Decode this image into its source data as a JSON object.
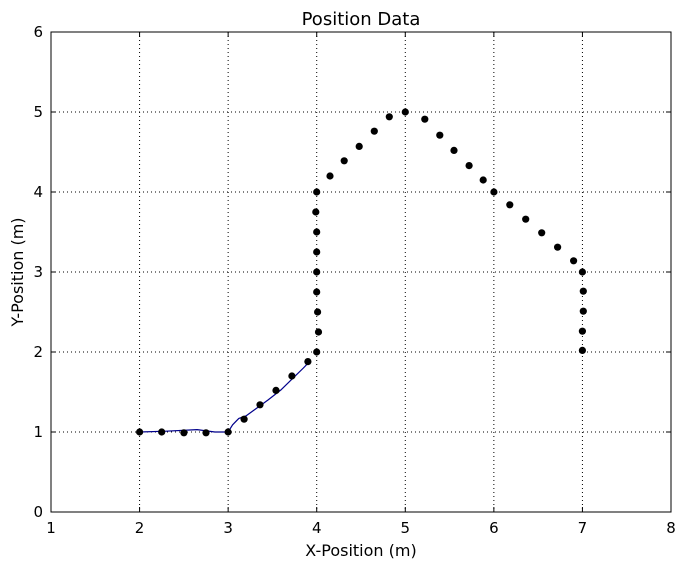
{
  "chart_data": {
    "type": "scatter",
    "title": "Position Data",
    "xlabel": "X-Position (m)",
    "ylabel": "Y-Position (m)",
    "xlim": [
      1,
      8
    ],
    "ylim": [
      0,
      6
    ],
    "xticks": [
      1,
      2,
      3,
      4,
      5,
      6,
      7,
      8
    ],
    "yticks": [
      0,
      1,
      2,
      3,
      4,
      5,
      6
    ],
    "grid": true,
    "colors": {
      "points": "#000000",
      "path": "#00008b",
      "grid": "#000000"
    },
    "series": [
      {
        "type": "scatter",
        "x": [
          2.0,
          2.25,
          2.5,
          2.75,
          3.0,
          3.18,
          3.36,
          3.54,
          3.72,
          3.9,
          4.0,
          4.02,
          4.01,
          4.0,
          4.0,
          4.0,
          4.0,
          3.99,
          4.0,
          4.15,
          4.31,
          4.48,
          4.65,
          4.82,
          5.0,
          5.22,
          5.39,
          5.55,
          5.72,
          5.88,
          6.0,
          6.18,
          6.36,
          6.54,
          6.72,
          6.9,
          7.0,
          7.01,
          7.01,
          7.0,
          7.0
        ],
        "y": [
          1.0,
          1.0,
          0.99,
          0.99,
          1.0,
          1.16,
          1.34,
          1.52,
          1.7,
          1.88,
          2.0,
          2.25,
          2.5,
          2.75,
          3.0,
          3.25,
          3.5,
          3.75,
          4.0,
          4.2,
          4.39,
          4.57,
          4.76,
          4.94,
          5.0,
          4.91,
          4.71,
          4.52,
          4.33,
          4.15,
          4.0,
          3.84,
          3.66,
          3.49,
          3.31,
          3.14,
          3.0,
          2.76,
          2.51,
          2.26,
          2.02
        ]
      },
      {
        "type": "line",
        "x": [
          2.0,
          2.3,
          2.65,
          2.85,
          3.0,
          3.05,
          3.12,
          3.2,
          3.3,
          3.45,
          3.6,
          3.72,
          3.85,
          3.92
        ],
        "y": [
          1.0,
          1.01,
          1.03,
          1.0,
          1.0,
          1.09,
          1.17,
          1.2,
          1.28,
          1.4,
          1.53,
          1.66,
          1.8,
          1.88
        ]
      }
    ]
  }
}
